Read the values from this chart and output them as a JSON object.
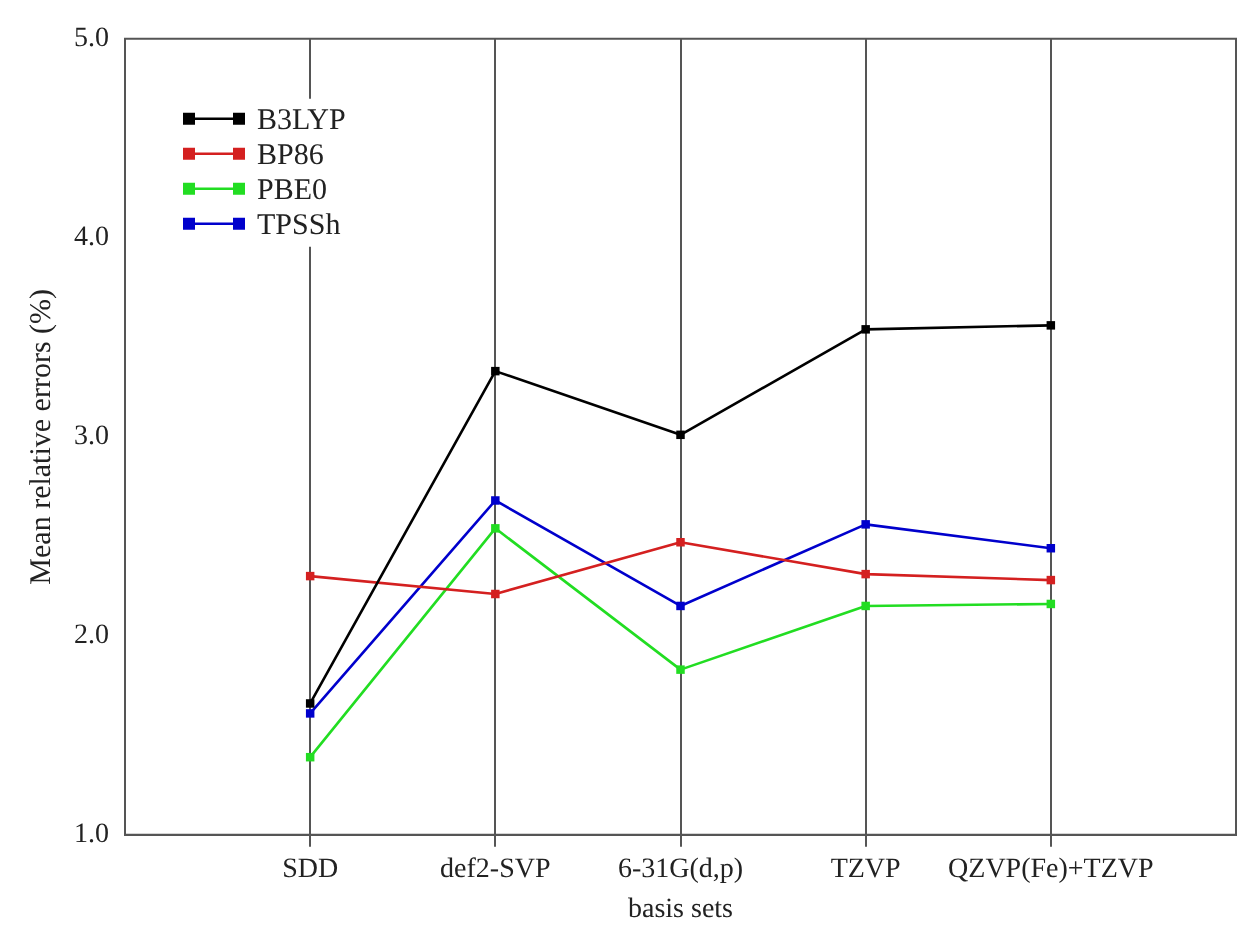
{
  "chart_data": {
    "type": "line",
    "xlabel": "basis sets",
    "ylabel": "Mean relative errors (%)",
    "categories": [
      "SDD",
      "def2-SVP",
      "6-31G(d,p)",
      "TZVP",
      "QZVP(Fe)+TZVP"
    ],
    "series": [
      {
        "name": "B3LYP",
        "color": "#000000",
        "values": [
          1.66,
          3.33,
          3.01,
          3.54,
          3.56
        ]
      },
      {
        "name": "BP86",
        "color": "#d42020",
        "values": [
          2.3,
          2.21,
          2.47,
          2.31,
          2.28
        ]
      },
      {
        "name": "PBE0",
        "color": "#22dd22",
        "values": [
          1.39,
          2.54,
          1.83,
          2.15,
          2.16
        ]
      },
      {
        "name": "TPSSh",
        "color": "#0000cc",
        "values": [
          1.61,
          2.68,
          2.15,
          2.56,
          2.44
        ]
      }
    ],
    "ylim": [
      1,
      5
    ],
    "yticks": [
      {
        "value": 1,
        "label": "1.0"
      },
      {
        "value": 2,
        "label": "2.0"
      },
      {
        "value": 3,
        "label": "3.0"
      },
      {
        "value": 4,
        "label": "4.0"
      },
      {
        "value": 5,
        "label": "5.0"
      }
    ],
    "grid": "x",
    "legend": "top left",
    "marker": "square",
    "line_style": "solid"
  }
}
